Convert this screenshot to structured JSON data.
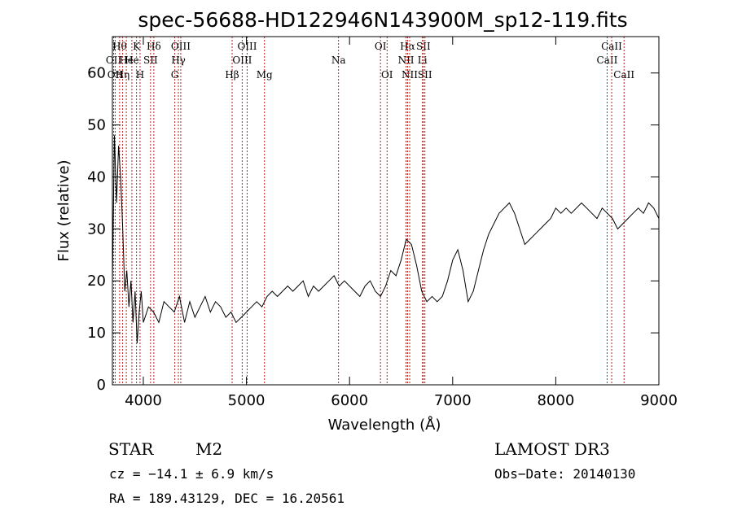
{
  "chart_data": {
    "type": "line",
    "title": "spec-56688-HD122946N143900M_sp12-119.fits",
    "xlabel": "Wavelength (Å)",
    "ylabel": "Flux (relative)",
    "xlim": [
      3700,
      9000
    ],
    "ylim": [
      0,
      67
    ],
    "xticks": [
      4000,
      5000,
      6000,
      7000,
      8000,
      9000
    ],
    "yticks": [
      0,
      10,
      20,
      30,
      40,
      50,
      60
    ],
    "grid": false,
    "series": [
      {
        "x": [
          3700,
          3720,
          3740,
          3760,
          3780,
          3800,
          3820,
          3840,
          3860,
          3880,
          3900,
          3920,
          3940,
          3960,
          3980,
          4000,
          4050,
          4100,
          4150,
          4200,
          4250,
          4300,
          4350,
          4400,
          4450,
          4500,
          4550,
          4600,
          4650,
          4700,
          4750,
          4800,
          4850,
          4900,
          4950,
          5000,
          5050,
          5100,
          5150,
          5200,
          5250,
          5300,
          5350,
          5400,
          5450,
          5500,
          5550,
          5600,
          5650,
          5700,
          5750,
          5800,
          5850,
          5900,
          5950,
          6000,
          6050,
          6100,
          6150,
          6200,
          6250,
          6300,
          6350,
          6400,
          6450,
          6500,
          6550,
          6600,
          6650,
          6700,
          6750,
          6800,
          6850,
          6900,
          6950,
          7000,
          7050,
          7100,
          7150,
          7200,
          7250,
          7300,
          7350,
          7400,
          7450,
          7500,
          7550,
          7600,
          7650,
          7700,
          7750,
          7800,
          7850,
          7900,
          7950,
          8000,
          8050,
          8100,
          8150,
          8200,
          8250,
          8300,
          8350,
          8400,
          8450,
          8500,
          8550,
          8600,
          8650,
          8700,
          8750,
          8800,
          8850,
          8900,
          8950,
          9000
        ],
        "y": [
          20,
          48,
          35,
          46,
          40,
          30,
          18,
          22,
          15,
          20,
          12,
          18,
          8,
          14,
          18,
          12,
          15,
          14,
          12,
          16,
          15,
          14,
          17,
          12,
          16,
          13,
          15,
          17,
          14,
          16,
          15,
          13,
          14,
          12,
          13,
          14,
          15,
          16,
          15,
          17,
          18,
          17,
          18,
          19,
          18,
          19,
          20,
          17,
          19,
          18,
          19,
          20,
          21,
          19,
          20,
          19,
          18,
          17,
          19,
          20,
          18,
          17,
          19,
          22,
          21,
          24,
          28,
          27,
          23,
          18,
          16,
          17,
          16,
          17,
          20,
          24,
          26,
          22,
          16,
          18,
          22,
          26,
          29,
          31,
          33,
          34,
          35,
          33,
          30,
          27,
          28,
          29,
          30,
          31,
          32,
          34,
          33,
          34,
          33,
          34,
          35,
          34,
          33,
          32,
          34,
          33,
          32,
          30,
          31,
          32,
          33,
          34,
          33,
          35,
          34,
          32
        ]
      }
    ],
    "lines": [
      {
        "wl": 3712,
        "label": "OII",
        "row": 2
      },
      {
        "wl": 3727,
        "label": "OII",
        "row": 3
      },
      {
        "wl": 3770,
        "label": "Hθ",
        "row": 1
      },
      {
        "wl": 3798,
        "label": "Hη",
        "row": 3
      },
      {
        "wl": 3835,
        "label": "He",
        "row": 2
      },
      {
        "wl": 3889,
        "label": "He",
        "row": 2
      },
      {
        "wl": 3934,
        "label": "K",
        "row": 1
      },
      {
        "wl": 3968,
        "label": "H",
        "row": 3
      },
      {
        "wl": 4070,
        "label": "SII",
        "row": 2
      },
      {
        "wl": 4102,
        "label": "Hδ",
        "row": 1
      },
      {
        "wl": 4305,
        "label": "G",
        "row": 3
      },
      {
        "wl": 4340,
        "label": "Hγ",
        "row": 2
      },
      {
        "wl": 4363,
        "label": "OIII",
        "row": 1
      },
      {
        "wl": 4861,
        "label": "Hβ",
        "row": 3
      },
      {
        "wl": 4959,
        "label": "OIII",
        "row": 2
      },
      {
        "wl": 5007,
        "label": "OIII",
        "row": 1
      },
      {
        "wl": 5175,
        "label": "Mg",
        "row": 3
      },
      {
        "wl": 5893,
        "label": "Na",
        "row": 2
      },
      {
        "wl": 6300,
        "label": "OI",
        "row": 1
      },
      {
        "wl": 6364,
        "label": "OI",
        "row": 3
      },
      {
        "wl": 6548,
        "label": "NII",
        "row": 2
      },
      {
        "wl": 6563,
        "label": "Hα",
        "row": 1
      },
      {
        "wl": 6583,
        "label": "NII",
        "row": 3
      },
      {
        "wl": 6707,
        "label": "Li",
        "row": 2
      },
      {
        "wl": 6716,
        "label": "SII",
        "row": 1
      },
      {
        "wl": 6731,
        "label": "SII",
        "row": 3
      },
      {
        "wl": 8498,
        "label": "CaII",
        "row": 2
      },
      {
        "wl": 8542,
        "label": "CaII",
        "row": 1
      },
      {
        "wl": 8662,
        "label": "CaII",
        "row": 3
      }
    ]
  },
  "info": {
    "class": "STAR",
    "subclass": "M2",
    "survey": "LAMOST DR3",
    "cz": "cz = −14.1 ± 6.9 km/s",
    "obsdate": "Obs−Date: 20140130",
    "radec": "RA = 189.43129, DEC =  16.20561"
  }
}
